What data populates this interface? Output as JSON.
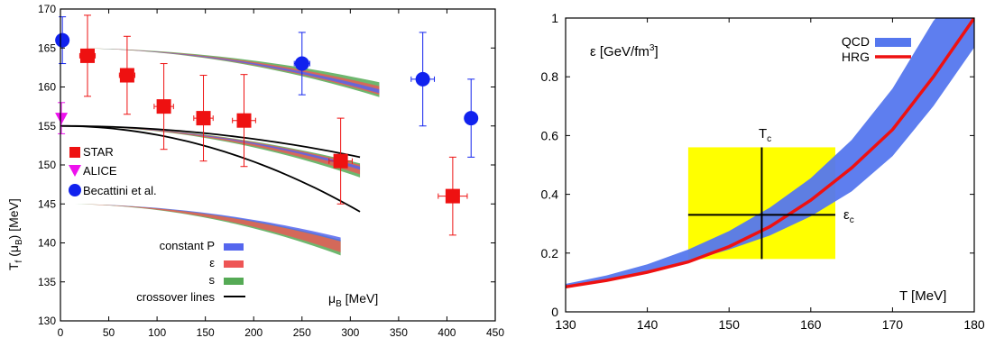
{
  "chart_data": [
    {
      "type": "scatter",
      "xlabel_main": "μ",
      "xlabel_sub": "B",
      "xlabel_unit": " [MeV]",
      "ylabel_main": "T",
      "ylabel_sub1": "f",
      "ylabel_mid": " (μ",
      "ylabel_sub2": "B",
      "ylabel_unit": ") [MeV]",
      "xlim": [
        0,
        450
      ],
      "ylim": [
        130,
        170
      ],
      "xticks": [
        0,
        50,
        100,
        150,
        200,
        250,
        300,
        350,
        400,
        450
      ],
      "yticks": [
        130,
        135,
        140,
        145,
        150,
        155,
        160,
        165,
        170
      ],
      "points": [
        {
          "name": "STAR",
          "color": "#ee1111",
          "marker": "square",
          "data": [
            {
              "x": 28,
              "y": 164,
              "ylo": 158.8,
              "yhi": 169.2,
              "xerr": 8
            },
            {
              "x": 69,
              "y": 161.5,
              "ylo": 156.5,
              "yhi": 166.5,
              "xerr": 8
            },
            {
              "x": 107,
              "y": 157.5,
              "ylo": 152,
              "yhi": 163,
              "xerr": 10
            },
            {
              "x": 148,
              "y": 156,
              "ylo": 150.5,
              "yhi": 161.5,
              "xerr": 10
            },
            {
              "x": 190,
              "y": 155.7,
              "ylo": 149.8,
              "yhi": 161.6,
              "xerr": 12
            },
            {
              "x": 290,
              "y": 150.5,
              "ylo": 145,
              "yhi": 156,
              "xerr": 12
            },
            {
              "x": 406,
              "y": 146,
              "ylo": 141,
              "yhi": 151,
              "xerr": 15
            }
          ]
        },
        {
          "name": "ALICE",
          "color": "#ee11ee",
          "marker": "triangle",
          "data": [
            {
              "x": 1,
              "y": 156,
              "ylo": 154,
              "yhi": 158,
              "xerr": 0
            }
          ]
        },
        {
          "name": "Becattini et al.",
          "color": "#1122ee",
          "marker": "circle",
          "data": [
            {
              "x": 2,
              "y": 166,
              "ylo": 163,
              "yhi": 169,
              "xerr": 0
            },
            {
              "x": 250,
              "y": 163,
              "ylo": 159,
              "yhi": 167,
              "xerr": 8
            },
            {
              "x": 375,
              "y": 161,
              "ylo": 155,
              "yhi": 167,
              "xerr": 12
            },
            {
              "x": 425,
              "y": 156,
              "ylo": 151,
              "yhi": 161,
              "xerr": 0
            }
          ]
        }
      ],
      "bands": [
        {
          "t0": 165,
          "xmax": 330,
          "legend": "constant P",
          "color": "#5566ee",
          "delta_top": 5.1,
          "delta_bot": 6.3
        },
        {
          "t0": 165,
          "xmax": 330,
          "legend": "ε",
          "color": "#ee5555",
          "delta_top": 4.8,
          "delta_bot": 6.0
        },
        {
          "t0": 165,
          "xmax": 330,
          "legend": "s",
          "color": "#55aa55",
          "delta_top": 4.4,
          "delta_bot": 5.6
        },
        {
          "t0": 155,
          "xmax": 310,
          "delta_top": 4.6,
          "delta_bot": 6.8
        },
        {
          "t0": 145,
          "xmax": 290,
          "delta_top": 4.2,
          "delta_bot": 6.6
        }
      ],
      "crossover_lines": [
        {
          "t0": 155,
          "xmax": 310,
          "y_end": 151
        },
        {
          "t0": 155,
          "xmax": 310,
          "y_end": 144
        }
      ],
      "legend": {
        "points": [
          "STAR",
          "ALICE",
          "Becattini et al."
        ],
        "bands": [
          "constant P",
          "ε",
          "s",
          "crossover lines"
        ],
        "crossover_color": "#000000"
      }
    },
    {
      "type": "area",
      "annotation_eps": "ε [GeV/fm",
      "annotation_sup": "3",
      "annotation_close": "]",
      "xlabel": "T [MeV]",
      "xlim": [
        130,
        180
      ],
      "ylim": [
        0,
        1
      ],
      "xticks": [
        130,
        140,
        150,
        160,
        170,
        180
      ],
      "yticks": [
        0,
        0.2,
        0.4,
        0.6,
        0.8,
        1
      ],
      "ytick_labels": [
        "0",
        "0.2",
        "0.4",
        "0.6",
        "0.8",
        "1"
      ],
      "series": [
        {
          "name": "QCD",
          "color": "#5577ee",
          "x": [
            130,
            135,
            140,
            145,
            150,
            155,
            160,
            165,
            170,
            175,
            180
          ],
          "lower": [
            0.085,
            0.108,
            0.137,
            0.172,
            0.212,
            0.26,
            0.325,
            0.41,
            0.53,
            0.7,
            0.9
          ],
          "upper": [
            0.095,
            0.124,
            0.162,
            0.212,
            0.275,
            0.355,
            0.455,
            0.585,
            0.76,
            0.99,
            1.15
          ]
        },
        {
          "name": "HRG",
          "color": "#ee1111",
          "x": [
            130,
            135,
            140,
            145,
            150,
            155,
            160,
            165,
            170,
            175,
            178,
            180
          ],
          "values": [
            0.085,
            0.107,
            0.135,
            0.17,
            0.222,
            0.29,
            0.38,
            0.49,
            0.62,
            0.8,
            0.92,
            1.0
          ]
        }
      ],
      "box": {
        "x0": 145,
        "x1": 163,
        "y0": 0.18,
        "y1": 0.56,
        "color": "#ffff00"
      },
      "cross": {
        "tc": 154,
        "eps_c": 0.33,
        "v_lo": 0.18,
        "v_hi": 0.56,
        "h_lo": 145,
        "h_hi": 163
      },
      "label_tc_main": "T",
      "label_tc_sub": "c",
      "label_epsc_main": "ε",
      "label_epsc_sub": "c"
    }
  ]
}
